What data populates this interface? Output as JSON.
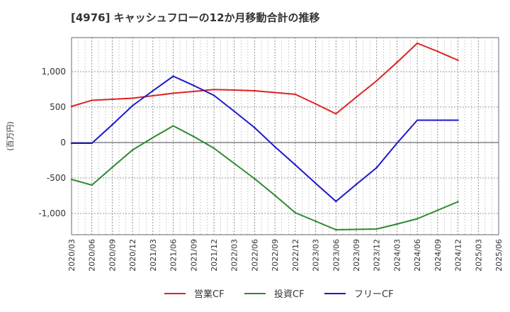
{
  "chart_data": {
    "type": "line",
    "title": "[4976]  キャッシュフローの12か月移動合計の推移",
    "ylabel": "(百万円)",
    "xlabel": "",
    "ylim": [
      -1300,
      1480
    ],
    "yticks": [
      1000,
      500,
      0,
      -500,
      -1000
    ],
    "ytick_labels": [
      "1,000",
      "500",
      "0",
      "-500",
      "-1,000"
    ],
    "categories": [
      "2020/03",
      "2020/06",
      "2020/09",
      "2020/12",
      "2021/03",
      "2021/06",
      "2021/09",
      "2021/12",
      "2022/03",
      "2022/06",
      "2022/09",
      "2022/12",
      "2023/03",
      "2023/06",
      "2023/09",
      "2023/12",
      "2024/03",
      "2024/06",
      "2024/09",
      "2024/12",
      "2025/03",
      "2025/06"
    ],
    "grid": true,
    "legend_position": "bottom",
    "series": [
      {
        "name": "営業CF",
        "color": "#dd2222",
        "values": [
          510,
          595,
          610,
          625,
          660,
          695,
          720,
          748,
          740,
          730,
          705,
          680,
          545,
          405,
          640,
          870,
          1130,
          1400,
          1285,
          1160,
          null,
          null
        ]
      },
      {
        "name": "投資CF",
        "color": "#2e8b2e",
        "values": [
          -520,
          -600,
          -350,
          -105,
          70,
          235,
          85,
          -80,
          -295,
          -510,
          -745,
          -990,
          -1110,
          -1230,
          -1225,
          -1220,
          -1150,
          -1075,
          -955,
          -835,
          null,
          null
        ]
      },
      {
        "name": "フリーCF",
        "color": "#1a1acc",
        "values": [
          -10,
          -10,
          250,
          520,
          730,
          935,
          805,
          665,
          440,
          210,
          -60,
          -315,
          -575,
          -830,
          -590,
          -355,
          -10,
          315,
          315,
          315,
          null,
          null
        ]
      }
    ]
  }
}
